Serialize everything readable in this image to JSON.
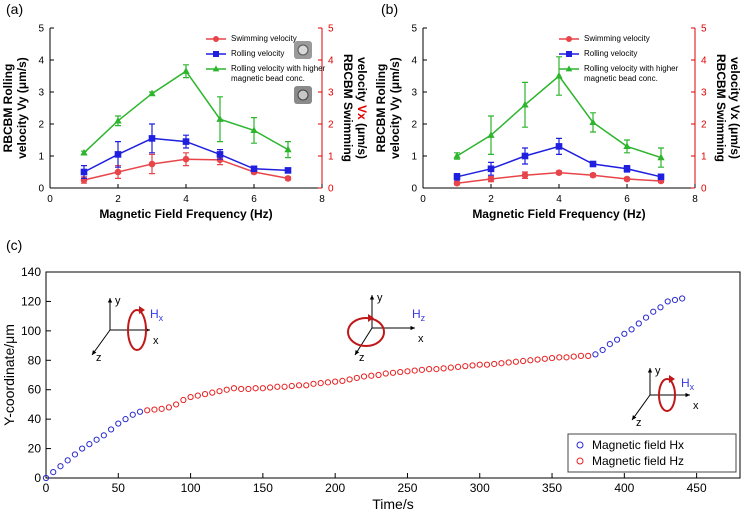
{
  "chart_data": [
    {
      "type": "line",
      "panel_label": "(a)",
      "xlabel": "Magnetic Field Frequency (Hz)",
      "ylabel": [
        "RBCBM Rolling",
        "velocity Vy (μm/s)"
      ],
      "y2label": {
        "line1": "RBCBM Swimming",
        "line2": [
          "velocity ",
          "Vx",
          " (μm/s)"
        ]
      },
      "y2_color": "#e00000",
      "x": [
        1,
        2,
        3,
        4,
        5,
        6,
        7
      ],
      "xlim": [
        0,
        8
      ],
      "xticks": [
        0,
        2,
        4,
        6,
        8
      ],
      "ylim": [
        0,
        5
      ],
      "yticks": [
        0,
        1,
        2,
        3,
        4,
        5
      ],
      "y2lim": [
        0,
        5
      ],
      "y2ticks": [
        0,
        1,
        2,
        3,
        4,
        5
      ],
      "legend": "upper right",
      "series": [
        {
          "name": "Swimming velocity",
          "color": "#e8454a",
          "marker": "circle",
          "axis": "y2",
          "values": [
            0.25,
            0.5,
            0.75,
            0.9,
            0.88,
            0.5,
            0.3
          ],
          "errors": [
            0.1,
            0.2,
            0.3,
            0.2,
            0.15,
            0.05,
            0.05
          ]
        },
        {
          "name": "Rolling velocity",
          "color": "#1f1fe0",
          "marker": "square",
          "values": [
            0.5,
            1.05,
            1.55,
            1.45,
            1.05,
            0.6,
            0.55
          ],
          "errors": [
            0.2,
            0.4,
            0.45,
            0.2,
            0.15,
            0.05,
            0.05
          ]
        },
        {
          "name": "Rolling velocity with higher magnetic bead conc.",
          "color": "#2db52d",
          "marker": "triangle",
          "values": [
            1.1,
            2.1,
            2.95,
            3.65,
            2.15,
            1.8,
            1.2
          ],
          "errors": [
            0.05,
            0.15,
            0.05,
            0.2,
            0.7,
            0.4,
            0.25
          ]
        }
      ]
    },
    {
      "type": "line",
      "panel_label": "(b)",
      "xlabel": "Magnetic Field Frequency (Hz)",
      "ylabel": [
        "RBCBM Rolling",
        "velocity Vy (μm/s)"
      ],
      "y2label": {
        "line1": "RBCBM Swimming",
        "line2": [
          "velocity Vx (μm/s)"
        ]
      },
      "y2_color": "#e00000",
      "x": [
        1,
        2,
        3,
        4,
        5,
        6,
        7
      ],
      "xlim": [
        0,
        8
      ],
      "xticks": [
        0,
        2,
        4,
        6,
        8
      ],
      "ylim": [
        0,
        5
      ],
      "yticks": [
        0,
        1,
        2,
        3,
        4,
        5
      ],
      "y2lim": [
        0,
        5
      ],
      "y2ticks": [
        0,
        1,
        2,
        3,
        4,
        5
      ],
      "legend": "upper right",
      "series": [
        {
          "name": "Swimming velocity",
          "color": "#e8454a",
          "marker": "circle",
          "axis": "y2",
          "values": [
            0.15,
            0.28,
            0.4,
            0.48,
            0.4,
            0.28,
            0.22
          ],
          "errors": [
            0.05,
            0.08,
            0.1,
            0.05,
            0.05,
            0.05,
            0.05
          ]
        },
        {
          "name": "Rolling velocity",
          "color": "#1f1fe0",
          "marker": "square",
          "values": [
            0.35,
            0.6,
            1.0,
            1.3,
            0.75,
            0.6,
            0.35
          ],
          "errors": [
            0.1,
            0.2,
            0.25,
            0.25,
            0.05,
            0.1,
            0.05
          ]
        },
        {
          "name": "Rolling velocity with higher magnetic bead conc.",
          "color": "#2db52d",
          "marker": "triangle",
          "values": [
            1.0,
            1.65,
            2.6,
            3.5,
            2.05,
            1.3,
            0.95
          ],
          "errors": [
            0.1,
            0.6,
            0.7,
            0.6,
            0.3,
            0.2,
            0.3
          ]
        }
      ]
    },
    {
      "type": "scatter",
      "panel_label": "(c)",
      "xlabel": "Time/s",
      "ylabel": "Y-coordinate/μm",
      "xlim": [
        0,
        480
      ],
      "xticks": [
        0,
        50,
        100,
        150,
        200,
        250,
        300,
        350,
        400,
        450
      ],
      "ylim": [
        0,
        140
      ],
      "yticks": [
        0,
        20,
        40,
        60,
        80,
        100,
        120,
        140
      ],
      "legend": "lower right",
      "diagrams": [
        {
          "y": "y",
          "x": "x",
          "z": "z",
          "field": "H",
          "field_sub": "x"
        },
        {
          "y": "y",
          "x": "x",
          "z": "z",
          "field": "H",
          "field_sub": "z"
        },
        {
          "y": "y",
          "x": "x",
          "z": "z",
          "field": "H",
          "field_sub": "x"
        }
      ],
      "series": [
        {
          "name": "Magnetic field Hx",
          "color": "#2a2ad0",
          "x": [
            0,
            5,
            10,
            15,
            20,
            25,
            30,
            35,
            40,
            45,
            50,
            55,
            60,
            65,
            380,
            385,
            390,
            395,
            400,
            405,
            410,
            415,
            420,
            425,
            430,
            435,
            440
          ],
          "values": [
            0,
            4,
            8,
            12,
            16,
            20,
            23,
            26,
            29,
            33,
            37,
            40,
            43,
            45,
            84,
            87,
            91,
            94,
            98,
            101,
            105,
            109,
            113,
            116,
            120,
            121,
            122
          ]
        },
        {
          "name": "Magnetic field Hz",
          "color": "#e82020",
          "x": [
            70,
            75,
            80,
            85,
            90,
            95,
            100,
            105,
            110,
            115,
            120,
            125,
            130,
            135,
            140,
            145,
            150,
            155,
            160,
            165,
            170,
            175,
            180,
            185,
            190,
            195,
            200,
            205,
            210,
            215,
            220,
            225,
            230,
            235,
            240,
            245,
            250,
            255,
            260,
            265,
            270,
            275,
            280,
            285,
            290,
            295,
            300,
            305,
            310,
            315,
            320,
            325,
            330,
            335,
            340,
            345,
            350,
            355,
            360,
            365,
            370,
            375
          ],
          "values": [
            46,
            46.5,
            47,
            48,
            50,
            53,
            55,
            56,
            57,
            58,
            59,
            60,
            61,
            60.5,
            60.5,
            61,
            61,
            61.5,
            62,
            62,
            62.5,
            63,
            63,
            64,
            64.5,
            65,
            65.5,
            66,
            67,
            68,
            69,
            69.5,
            70,
            71,
            71.5,
            72,
            72.5,
            73,
            73.5,
            74,
            74,
            74.5,
            75,
            75.5,
            76,
            76.5,
            77,
            77,
            77.5,
            78,
            78.5,
            79,
            79.5,
            80,
            80.5,
            81,
            81.5,
            82,
            82,
            82.5,
            83,
            83
          ]
        }
      ]
    }
  ]
}
